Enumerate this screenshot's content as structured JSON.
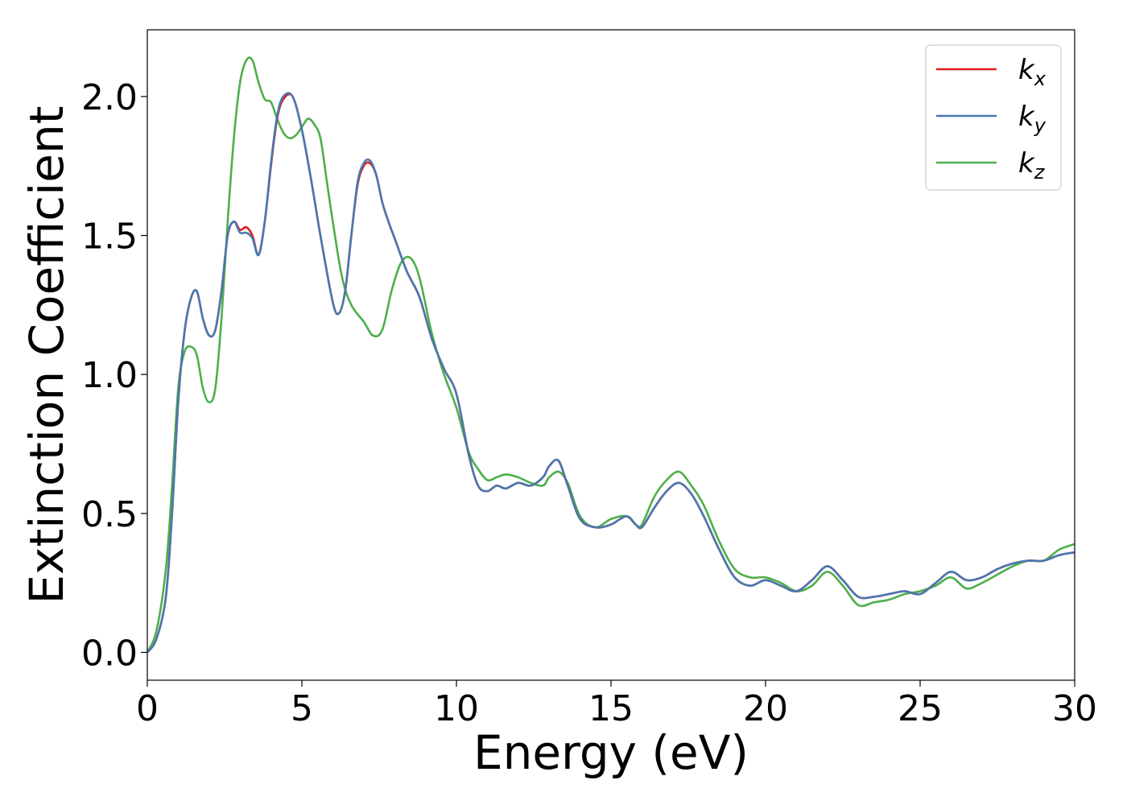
{
  "chart_data": {
    "type": "line",
    "xlabel": "Energy (eV)",
    "ylabel": "Extinction Coefficient",
    "xlim": [
      0,
      30
    ],
    "ylim": [
      -0.1,
      2.24
    ],
    "xticks": [
      0,
      5,
      10,
      15,
      20,
      25,
      30
    ],
    "xtick_labels": [
      "0",
      "5",
      "10",
      "15",
      "20",
      "25",
      "30"
    ],
    "yticks": [
      0.0,
      0.5,
      1.0,
      1.5,
      2.0
    ],
    "ytick_labels": [
      "0.0",
      "0.5",
      "1.0",
      "1.5",
      "2.0"
    ],
    "grid": false,
    "legend_position": "top-right",
    "series": [
      {
        "name": "k_x",
        "label_main": "k",
        "label_sub": "x",
        "color": "#e41a1c",
        "x": [
          0,
          0.3,
          0.6,
          0.8,
          1.0,
          1.2,
          1.4,
          1.6,
          1.8,
          2.0,
          2.2,
          2.4,
          2.6,
          2.8,
          3.0,
          3.2,
          3.4,
          3.6,
          3.8,
          4.0,
          4.2,
          4.4,
          4.7,
          5.0,
          5.3,
          5.6,
          6.0,
          6.2,
          6.4,
          6.6,
          6.8,
          7.0,
          7.2,
          7.4,
          7.6,
          7.8,
          8.0,
          8.4,
          8.8,
          9.2,
          9.6,
          10.0,
          10.4,
          10.7,
          11.0,
          11.3,
          11.6,
          12.0,
          12.4,
          12.8,
          13.0,
          13.3,
          13.6,
          14.0,
          14.5,
          15.0,
          15.5,
          15.8,
          16.0,
          16.4,
          16.8,
          17.2,
          17.6,
          18.0,
          18.5,
          19.0,
          19.5,
          20.0,
          20.5,
          21.0,
          21.5,
          22.0,
          22.5,
          23.0,
          23.5,
          24.0,
          24.5,
          25.0,
          25.5,
          26.0,
          26.5,
          27.0,
          27.5,
          28.0,
          28.5,
          29.0,
          29.5,
          30.0
        ],
        "y": [
          0.0,
          0.05,
          0.2,
          0.5,
          0.9,
          1.15,
          1.27,
          1.3,
          1.2,
          1.14,
          1.16,
          1.3,
          1.5,
          1.55,
          1.52,
          1.53,
          1.5,
          1.43,
          1.55,
          1.75,
          1.92,
          1.99,
          2.0,
          1.88,
          1.7,
          1.5,
          1.26,
          1.22,
          1.3,
          1.5,
          1.68,
          1.75,
          1.76,
          1.72,
          1.62,
          1.55,
          1.49,
          1.37,
          1.28,
          1.13,
          1.02,
          0.93,
          0.71,
          0.6,
          0.58,
          0.6,
          0.59,
          0.61,
          0.6,
          0.63,
          0.67,
          0.69,
          0.6,
          0.48,
          0.45,
          0.46,
          0.49,
          0.46,
          0.45,
          0.52,
          0.58,
          0.61,
          0.57,
          0.49,
          0.37,
          0.27,
          0.24,
          0.26,
          0.24,
          0.22,
          0.26,
          0.31,
          0.26,
          0.2,
          0.2,
          0.21,
          0.22,
          0.21,
          0.25,
          0.29,
          0.26,
          0.27,
          0.3,
          0.32,
          0.33,
          0.33,
          0.35,
          0.36
        ]
      },
      {
        "name": "k_y",
        "label_main": "k",
        "label_sub": "y",
        "color": "#4878b0",
        "x": [
          0,
          0.3,
          0.6,
          0.8,
          1.0,
          1.2,
          1.4,
          1.6,
          1.8,
          2.0,
          2.2,
          2.4,
          2.6,
          2.8,
          3.0,
          3.2,
          3.4,
          3.6,
          3.8,
          4.0,
          4.2,
          4.4,
          4.7,
          5.0,
          5.3,
          5.6,
          6.0,
          6.2,
          6.4,
          6.6,
          6.8,
          7.0,
          7.2,
          7.4,
          7.6,
          7.8,
          8.0,
          8.4,
          8.8,
          9.2,
          9.6,
          10.0,
          10.4,
          10.7,
          11.0,
          11.3,
          11.6,
          12.0,
          12.4,
          12.8,
          13.0,
          13.3,
          13.6,
          14.0,
          14.5,
          15.0,
          15.5,
          15.8,
          16.0,
          16.4,
          16.8,
          17.2,
          17.6,
          18.0,
          18.5,
          19.0,
          19.5,
          20.0,
          20.5,
          21.0,
          21.5,
          22.0,
          22.5,
          23.0,
          23.5,
          24.0,
          24.5,
          25.0,
          25.5,
          26.0,
          26.5,
          27.0,
          27.5,
          28.0,
          28.5,
          29.0,
          29.5,
          30.0
        ],
        "y": [
          0.0,
          0.05,
          0.2,
          0.5,
          0.9,
          1.15,
          1.27,
          1.3,
          1.2,
          1.14,
          1.16,
          1.3,
          1.5,
          1.55,
          1.51,
          1.51,
          1.49,
          1.43,
          1.55,
          1.76,
          1.93,
          2.0,
          2.0,
          1.88,
          1.7,
          1.5,
          1.26,
          1.22,
          1.3,
          1.5,
          1.69,
          1.76,
          1.77,
          1.72,
          1.62,
          1.55,
          1.49,
          1.37,
          1.28,
          1.13,
          1.02,
          0.93,
          0.71,
          0.6,
          0.58,
          0.6,
          0.59,
          0.61,
          0.6,
          0.63,
          0.67,
          0.69,
          0.6,
          0.48,
          0.45,
          0.46,
          0.49,
          0.46,
          0.45,
          0.52,
          0.58,
          0.61,
          0.57,
          0.49,
          0.37,
          0.27,
          0.24,
          0.26,
          0.24,
          0.22,
          0.26,
          0.31,
          0.26,
          0.2,
          0.2,
          0.21,
          0.22,
          0.21,
          0.25,
          0.29,
          0.26,
          0.27,
          0.3,
          0.32,
          0.33,
          0.33,
          0.35,
          0.36
        ]
      },
      {
        "name": "k_z",
        "label_main": "k",
        "label_sub": "z",
        "color": "#4daf4a",
        "x": [
          0,
          0.3,
          0.6,
          0.8,
          1.0,
          1.2,
          1.4,
          1.6,
          1.8,
          2.0,
          2.2,
          2.4,
          2.6,
          2.8,
          3.0,
          3.2,
          3.4,
          3.6,
          3.8,
          4.0,
          4.2,
          4.4,
          4.6,
          4.8,
          5.0,
          5.2,
          5.4,
          5.6,
          5.8,
          6.0,
          6.3,
          6.6,
          7.0,
          7.3,
          7.6,
          7.9,
          8.2,
          8.5,
          8.8,
          9.2,
          9.6,
          10.0,
          10.4,
          10.7,
          11.0,
          11.3,
          11.6,
          12.0,
          12.4,
          12.8,
          13.0,
          13.3,
          13.6,
          14.0,
          14.5,
          15.0,
          15.5,
          15.8,
          16.0,
          16.4,
          16.8,
          17.2,
          17.6,
          18.0,
          18.5,
          19.0,
          19.5,
          20.0,
          20.5,
          21.0,
          21.5,
          22.0,
          22.5,
          23.0,
          23.5,
          24.0,
          24.5,
          25.0,
          25.5,
          26.0,
          26.5,
          27.0,
          27.5,
          28.0,
          28.5,
          29.0,
          29.5,
          30.0
        ],
        "y": [
          0.0,
          0.08,
          0.3,
          0.6,
          0.95,
          1.08,
          1.1,
          1.07,
          0.95,
          0.9,
          0.95,
          1.2,
          1.55,
          1.85,
          2.05,
          2.13,
          2.13,
          2.05,
          1.99,
          1.98,
          1.92,
          1.87,
          1.85,
          1.86,
          1.89,
          1.92,
          1.9,
          1.85,
          1.7,
          1.55,
          1.35,
          1.25,
          1.19,
          1.14,
          1.16,
          1.3,
          1.4,
          1.42,
          1.35,
          1.15,
          1.0,
          0.88,
          0.72,
          0.66,
          0.62,
          0.63,
          0.64,
          0.63,
          0.61,
          0.6,
          0.63,
          0.65,
          0.61,
          0.49,
          0.45,
          0.48,
          0.49,
          0.46,
          0.46,
          0.56,
          0.62,
          0.65,
          0.6,
          0.53,
          0.4,
          0.3,
          0.27,
          0.27,
          0.25,
          0.22,
          0.24,
          0.29,
          0.24,
          0.17,
          0.18,
          0.19,
          0.21,
          0.22,
          0.24,
          0.27,
          0.23,
          0.25,
          0.28,
          0.31,
          0.33,
          0.33,
          0.37,
          0.39
        ]
      }
    ]
  }
}
